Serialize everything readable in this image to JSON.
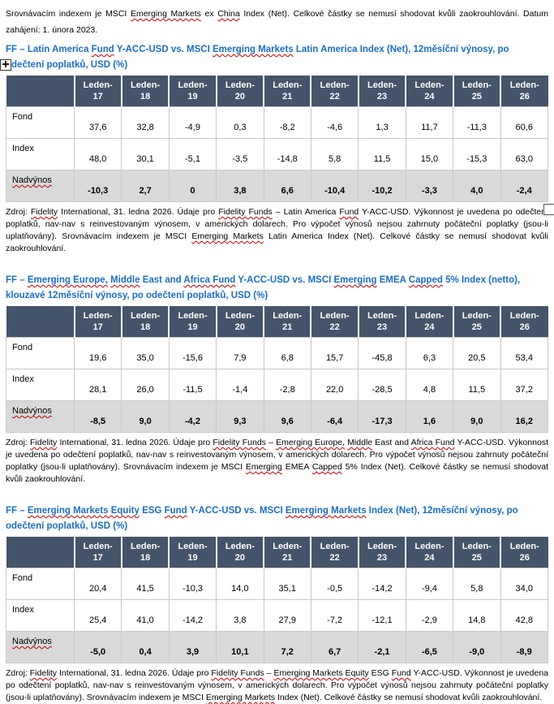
{
  "document": {
    "colors": {
      "header_bg": "#44546A",
      "header_text": "#FFFFFF",
      "highlight_row_bg": "#D9D9D9",
      "heading_text": "#1B6FC2",
      "squiggle": "#C00000",
      "body_text": "#000000",
      "table_border": "#C9C9C9"
    },
    "icons": {
      "move_handle": "four-way-arrow-cross-in-square",
      "resize_handle": "small-empty-square"
    },
    "intro": [
      {
        "t": "Srovnávacím indexem je MSCI ",
        "u": false
      },
      {
        "t": "Emerging Markets",
        "u": true
      },
      {
        "t": " ex ",
        "u": false
      },
      {
        "t": "China",
        "u": true
      },
      {
        "t": " Index (Net). Celkové částky se nemusí shodovat kvůli zaokrouhlování. Datum zahájení: 1. února 2023.",
        "u": false
      }
    ],
    "sections": [
      {
        "heading": [
          {
            "t": "FF – Latin America ",
            "u": false
          },
          {
            "t": "Fund",
            "u": true
          },
          {
            "t": " Y-ACC-USD vs. MSCI ",
            "u": false
          },
          {
            "t": "Emerging Markets",
            "u": true
          },
          {
            "t": " Latin America Index (Net), 12měsíční výnosy, po odečtení poplatků, USD (%)",
            "u": false
          }
        ],
        "table": {
          "col_prefix": "Leden-",
          "columns": [
            "17",
            "18",
            "19",
            "20",
            "21",
            "22",
            "23",
            "24",
            "25",
            "26"
          ],
          "rows": [
            {
              "label": "Fond",
              "label_misspelled": false,
              "highlight": false,
              "bold": false,
              "values": [
                "37,6",
                "32,8",
                "-4,9",
                "0,3",
                "-8,2",
                "-4,6",
                "1,3",
                "11,7",
                "-11,3",
                "60,6"
              ]
            },
            {
              "label": "Index",
              "label_misspelled": false,
              "highlight": false,
              "bold": false,
              "values": [
                "48,0",
                "30,1",
                "-5,1",
                "-3,5",
                "-14,8",
                "5,8",
                "11,5",
                "15,0",
                "-15,3",
                "63,0"
              ]
            },
            {
              "label": "Nadvýnos",
              "label_misspelled": true,
              "highlight": true,
              "bold": true,
              "values": [
                "-10,3",
                "2,7",
                "0",
                "3,8",
                "6,6",
                "-10,4",
                "-10,2",
                "-3,3",
                "4,0",
                "-2,4"
              ]
            }
          ]
        },
        "source": [
          {
            "t": "Zdroj: ",
            "u": false
          },
          {
            "t": "Fidelity",
            "u": true
          },
          {
            "t": " International, 31. ledna 2026. Údaje pro ",
            "u": false
          },
          {
            "t": "Fidelity Funds",
            "u": true
          },
          {
            "t": " – Latin America ",
            "u": false
          },
          {
            "t": "Fund",
            "u": true
          },
          {
            "t": " Y-ACC-USD. Výkonnost je uvedena po odečtení poplatků, nav-nav s reinvestovaným výnosem, v amerických dolarech. Pro výpočet výnosů nejsou zahrnuty počáteční poplatky (jsou-li uplatňovány). Srovnávacím indexem je MSCI ",
            "u": false
          },
          {
            "t": "Emerging Markets",
            "u": true
          },
          {
            "t": " Latin America Index (Net). Celkové částky se nemusí shodovat kvůli zaokrouhlování.",
            "u": false
          }
        ]
      },
      {
        "heading": [
          {
            "t": "FF – ",
            "u": false
          },
          {
            "t": "Emerging Europe,",
            "u": true
          },
          {
            "t": " ",
            "u": false
          },
          {
            "t": "Middle",
            "u": true
          },
          {
            "t": " East and ",
            "u": false
          },
          {
            "t": "Africa Fund",
            "u": true
          },
          {
            "t": " Y-ACC-USD vs. MSCI ",
            "u": false
          },
          {
            "t": "Emerging",
            "u": true
          },
          {
            "t": " EMEA ",
            "u": false
          },
          {
            "t": "Capped",
            "u": true
          },
          {
            "t": " 5% Index (netto), klouzavé 12měsíční výnosy, po odečtení poplatků, USD (%)",
            "u": false
          }
        ],
        "table": {
          "col_prefix": "Leden-",
          "columns": [
            "17",
            "18",
            "19",
            "20",
            "21",
            "22",
            "23",
            "24",
            "25",
            "26"
          ],
          "rows": [
            {
              "label": "Fond",
              "label_misspelled": false,
              "highlight": false,
              "bold": false,
              "values": [
                "19,6",
                "35,0",
                "-15,6",
                "7,9",
                "6,8",
                "15,7",
                "-45,8",
                "6,3",
                "20,5",
                "53,4"
              ]
            },
            {
              "label": "Index",
              "label_misspelled": false,
              "highlight": false,
              "bold": false,
              "values": [
                "28,1",
                "26,0",
                "-11,5",
                "-1,4",
                "-2,8",
                "22,0",
                "-28,5",
                "4,8",
                "11,5",
                "37,2"
              ]
            },
            {
              "label": "Nadvýnos",
              "label_misspelled": true,
              "highlight": true,
              "bold": true,
              "values": [
                "-8,5",
                "9,0",
                "-4,2",
                "9,3",
                "9,6",
                "-6,4",
                "-17,3",
                "1,6",
                "9,0",
                "16,2"
              ]
            }
          ]
        },
        "source": [
          {
            "t": "Zdroj: ",
            "u": false
          },
          {
            "t": "Fidelity",
            "u": true
          },
          {
            "t": " International, 31. ledna 2026. Údaje pro ",
            "u": false
          },
          {
            "t": "Fidelity Funds",
            "u": true
          },
          {
            "t": " – ",
            "u": false
          },
          {
            "t": "Emerging Europe,",
            "u": true
          },
          {
            "t": " ",
            "u": false
          },
          {
            "t": "Middle",
            "u": true
          },
          {
            "t": " East and ",
            "u": false
          },
          {
            "t": "Africa Fund",
            "u": true
          },
          {
            "t": " Y-ACC-USD. Výkonnost je uvedena po odečtení poplatků, nav-nav s reinvestovaným výnosem, v amerických dolarech. Pro výpočet výnosů nejsou zahrnuty počáteční poplatky (jsou-li uplatňovány). Srovnávacím indexem je MSCI ",
            "u": false
          },
          {
            "t": "Emerging",
            "u": true
          },
          {
            "t": " EMEA ",
            "u": false
          },
          {
            "t": "Capped",
            "u": true
          },
          {
            "t": " 5% Index (Net). Celkové částky se nemusí shodovat kvůli zaokrouhlování.",
            "u": false
          }
        ]
      },
      {
        "heading": [
          {
            "t": "FF – ",
            "u": false
          },
          {
            "t": "Emerging Markets Equity",
            "u": true
          },
          {
            "t": " ESG ",
            "u": false
          },
          {
            "t": "Fund",
            "u": true
          },
          {
            "t": " Y-ACC-USD vs. MSCI ",
            "u": false
          },
          {
            "t": "Emerging Markets",
            "u": true
          },
          {
            "t": " Index (Net), 12měsíční výnosy, po odečtení poplatků, USD (%)",
            "u": false
          }
        ],
        "table": {
          "col_prefix": "Leden-",
          "columns": [
            "17",
            "18",
            "19",
            "20",
            "21",
            "22",
            "23",
            "24",
            "25",
            "26"
          ],
          "rows": [
            {
              "label": "Fond",
              "label_misspelled": false,
              "highlight": false,
              "bold": false,
              "values": [
                "20,4",
                "41,5",
                "-10,3",
                "14,0",
                "35,1",
                "-0,5",
                "-14,2",
                "-9,4",
                "5,8",
                "34,0"
              ]
            },
            {
              "label": "Index",
              "label_misspelled": false,
              "highlight": false,
              "bold": false,
              "values": [
                "25,4",
                "41,0",
                "-14,2",
                "3,8",
                "27,9",
                "-7,2",
                "-12,1",
                "-2,9",
                "14,8",
                "42,8"
              ]
            },
            {
              "label": "Nadvýnos",
              "label_misspelled": true,
              "highlight": true,
              "bold": true,
              "values": [
                "-5,0",
                "0,4",
                "3,9",
                "10,1",
                "7,2",
                "6,7",
                "-2,1",
                "-6,5",
                "-9,0",
                "-8,9"
              ]
            }
          ]
        },
        "source": [
          {
            "t": "Zdroj: ",
            "u": false
          },
          {
            "t": "Fidelity",
            "u": true
          },
          {
            "t": " International, 31. ledna 2026. Údaje pro ",
            "u": false
          },
          {
            "t": "Fidelity Funds",
            "u": true
          },
          {
            "t": " – ",
            "u": false
          },
          {
            "t": "Emerging Markets Equity",
            "u": true
          },
          {
            "t": " ESG ",
            "u": false
          },
          {
            "t": "Fund",
            "u": true
          },
          {
            "t": " Y-ACC-USD. Výkonnost je uvedena po odečtení poplatků, nav-nav s reinvestovaným výnosem, v amerických dolarech. Pro výpočet výnosů nejsou zahrnuty počáteční poplatky (jsou-li uplatňovány). Srovnávacím indexem je MSCI ",
            "u": false
          },
          {
            "t": "Emerging Markets",
            "u": true
          },
          {
            "t": " Index (Net). Celkové částky se nemusí shodovat kvůli zaokrouhlování.",
            "u": false
          }
        ]
      }
    ]
  }
}
